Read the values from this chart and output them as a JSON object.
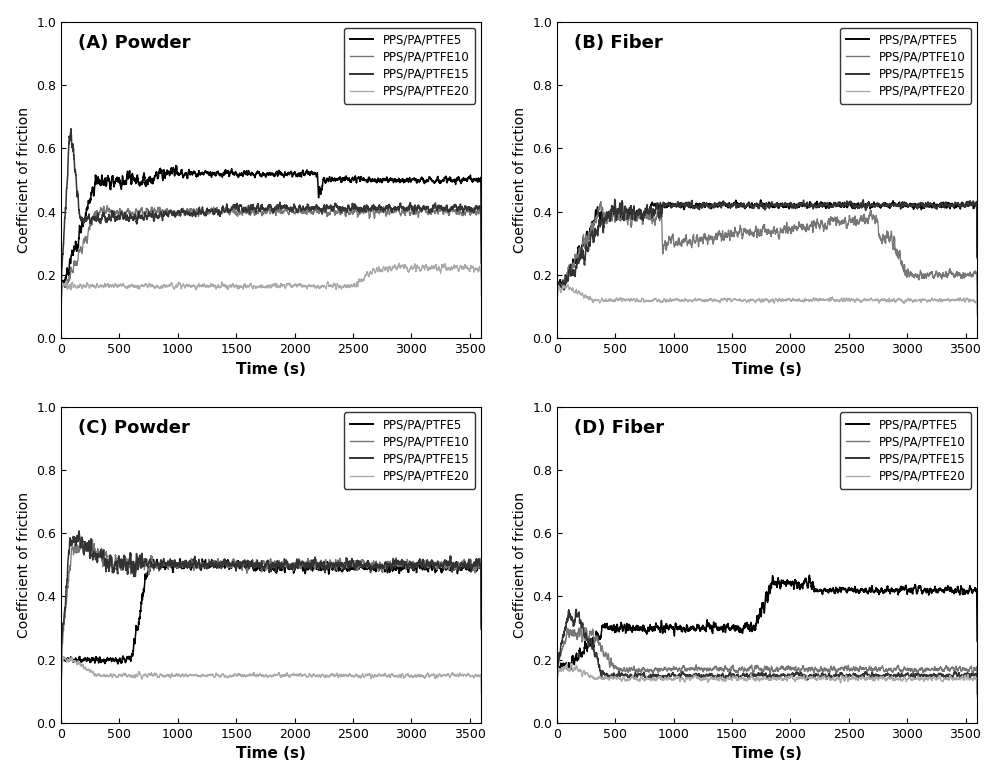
{
  "legend_labels": [
    "PPS/PA/PTFE5",
    "PPS/PA/PTFE10",
    "PPS/PA/PTFE15",
    "PPS/PA/PTFE20"
  ],
  "xlim": [
    0,
    3600
  ],
  "ylim": [
    0.0,
    1.0
  ],
  "xticks": [
    0,
    500,
    1000,
    1500,
    2000,
    2500,
    3000,
    3500
  ],
  "yticks": [
    0.0,
    0.2,
    0.4,
    0.6,
    0.8,
    1.0
  ],
  "xlabel": "Time (s)",
  "ylabel": "Coefficient of friction",
  "background_color": "#ffffff",
  "panel_labels": [
    "(A) Powder",
    "(B) Fiber",
    "(C) Powder",
    "(D) Fiber"
  ],
  "colors": [
    "#000000",
    "#777777",
    "#333333",
    "#aaaaaa"
  ],
  "lws": [
    1.1,
    0.9,
    1.1,
    0.9
  ],
  "seed": 7
}
